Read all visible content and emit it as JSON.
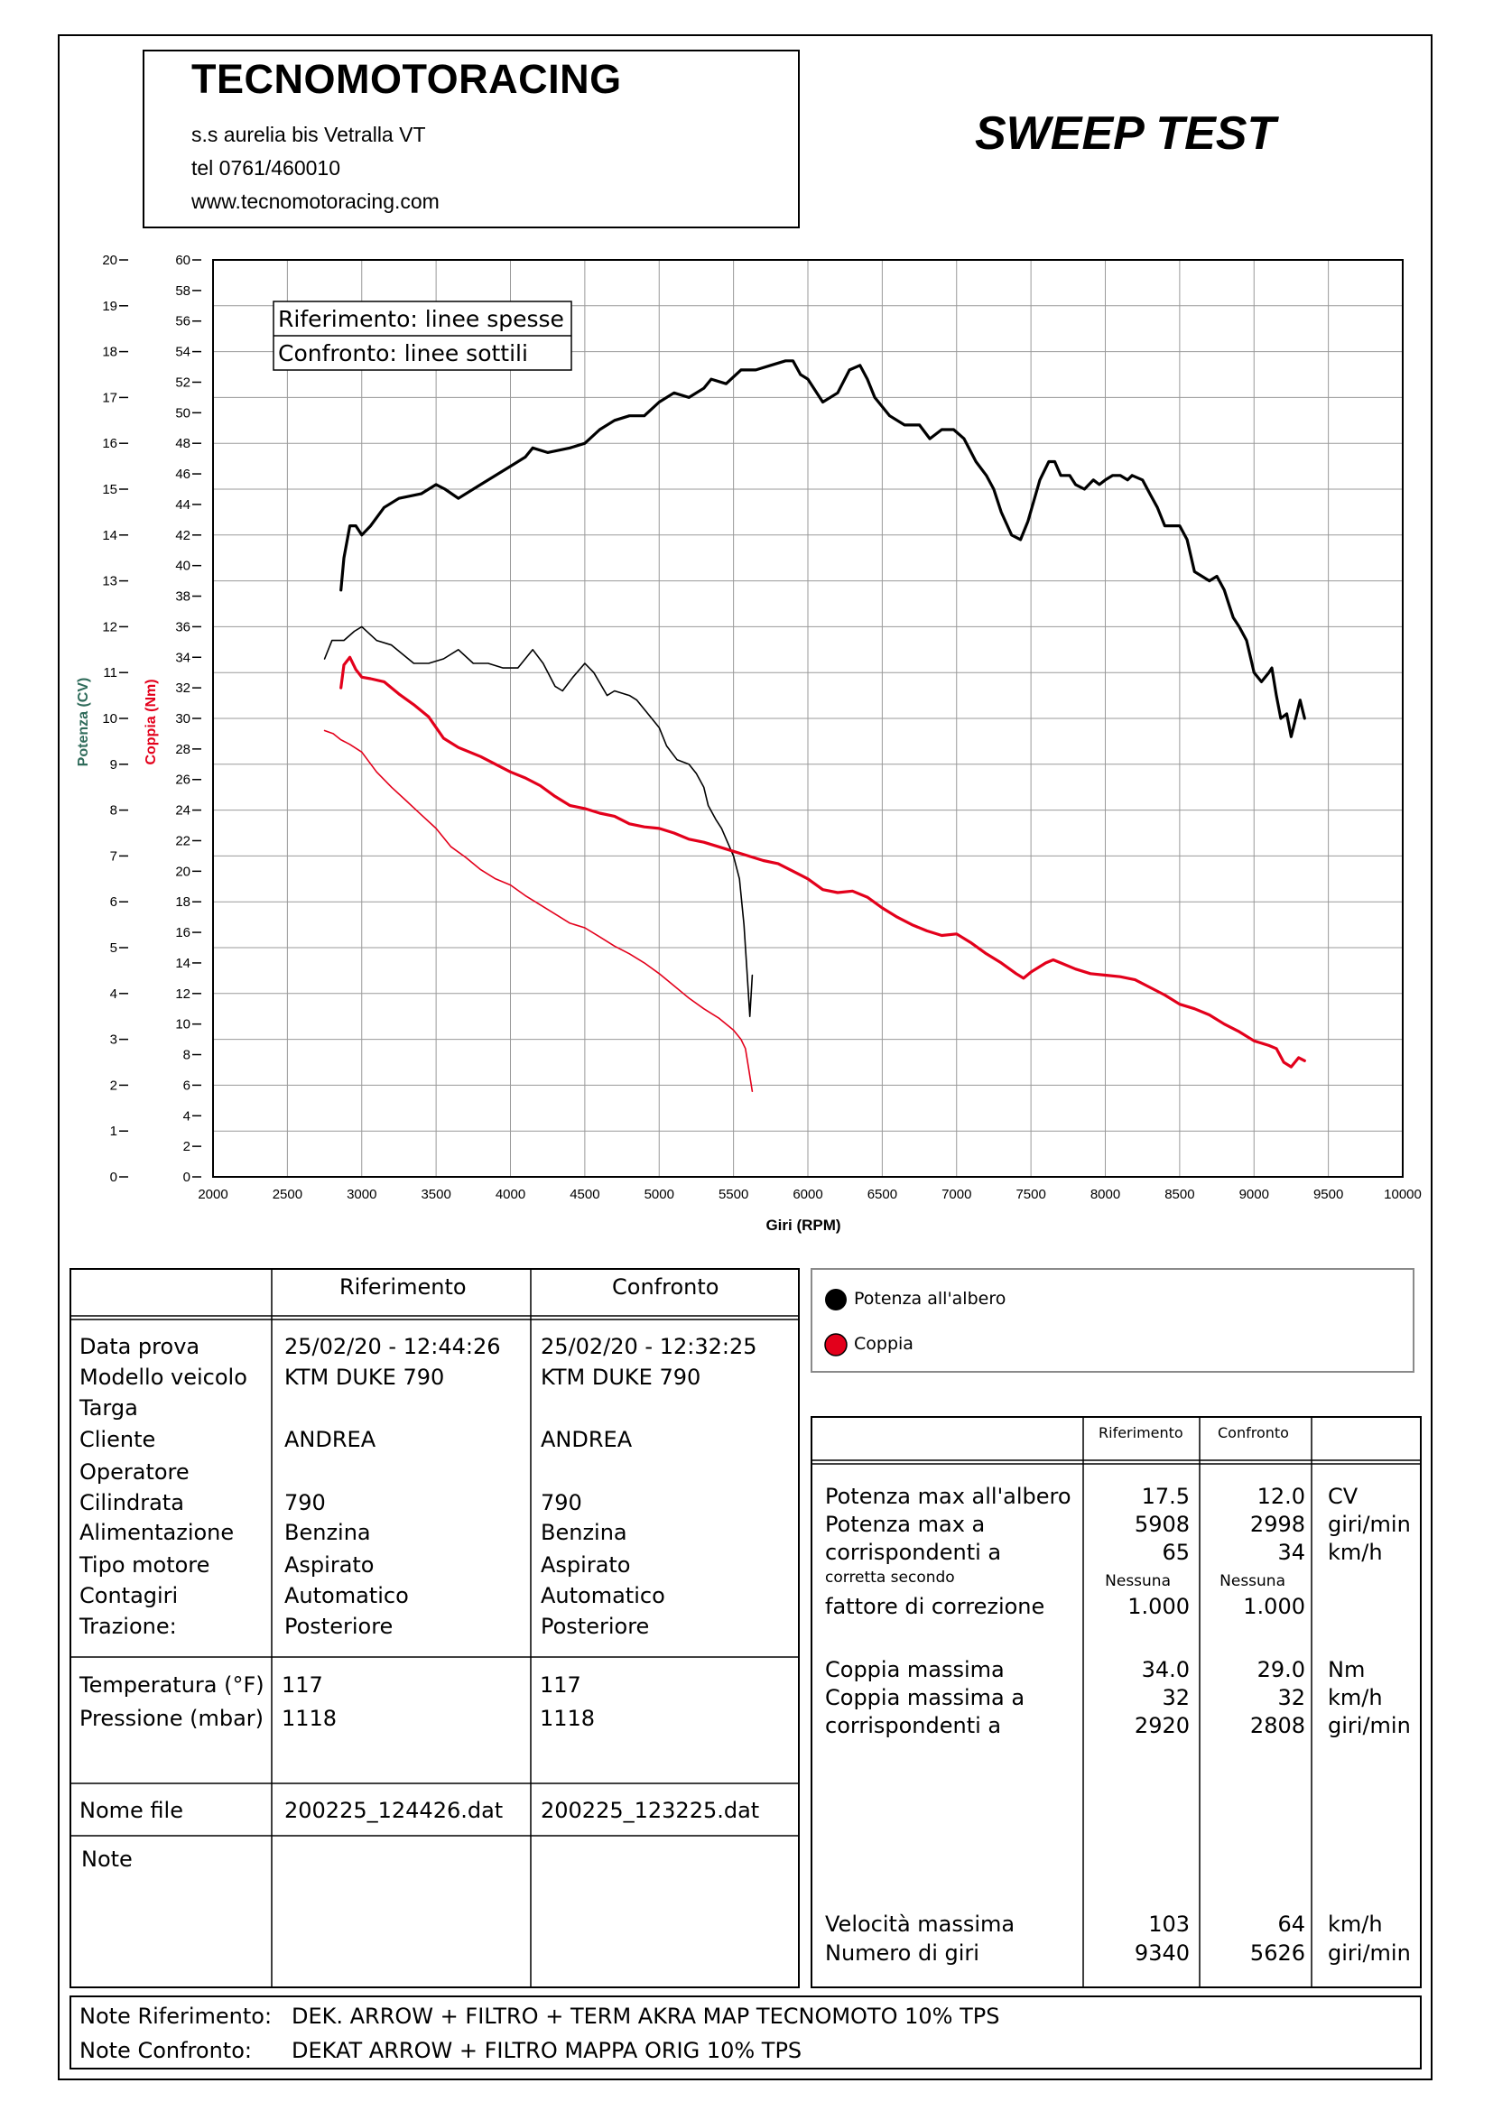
{
  "header": {
    "company": "TECNOMOTORACING",
    "address": "s.s aurelia bis  Vetralla  VT",
    "phone": "tel 0761/460010",
    "website": "www.tecnomotoracing.com",
    "test_title": "SWEEP TEST"
  },
  "legend_box": {
    "reference": "Riferimento: linee spesse",
    "comparison": "Confronto: linee sottili"
  },
  "series_legend": {
    "power": "Potenza all'albero",
    "torque": "Coppia",
    "power_color": "#000000",
    "torque_color": "#e3001b"
  },
  "chart_data": {
    "type": "line",
    "xlabel": "Giri (RPM)",
    "y1label": "Potenza (CV)",
    "y2label": "Coppia (Nm)",
    "xlim": [
      2000,
      10000
    ],
    "x_ticks": [
      2000,
      2500,
      3000,
      3500,
      4000,
      4500,
      5000,
      5500,
      6000,
      6500,
      7000,
      7500,
      8000,
      8500,
      9000,
      9500,
      10000
    ],
    "y1lim": [
      0,
      20
    ],
    "y1_ticks": [
      0,
      1,
      2,
      3,
      4,
      5,
      6,
      7,
      8,
      9,
      10,
      11,
      12,
      13,
      14,
      15,
      16,
      17,
      18,
      19,
      20
    ],
    "y2lim": [
      0,
      60
    ],
    "y2_ticks": [
      0,
      2,
      4,
      6,
      8,
      10,
      12,
      14,
      16,
      18,
      20,
      22,
      24,
      26,
      28,
      30,
      32,
      34,
      36,
      38,
      40,
      42,
      44,
      46,
      48,
      50,
      52,
      54,
      56,
      58,
      60
    ],
    "grid": true,
    "series": [
      {
        "name": "Potenza all'albero",
        "axis": "left",
        "color": "#000000",
        "weight": "thick",
        "x": [
          2860,
          2880,
          2920,
          2960,
          3000,
          3060,
          3150,
          3250,
          3400,
          3500,
          3560,
          3650,
          3800,
          3900,
          4000,
          4100,
          4150,
          4250,
          4400,
          4500,
          4600,
          4700,
          4800,
          4900,
          5000,
          5100,
          5200,
          5300,
          5350,
          5450,
          5550,
          5650,
          5750,
          5850,
          5900,
          5950,
          6000,
          6100,
          6200,
          6280,
          6350,
          6400,
          6450,
          6550,
          6650,
          6750,
          6820,
          6900,
          6980,
          7050,
          7130,
          7200,
          7250,
          7300,
          7370,
          7430,
          7480,
          7560,
          7620,
          7660,
          7700,
          7760,
          7800,
          7860,
          7920,
          7960,
          8000,
          8050,
          8100,
          8150,
          8180,
          8250,
          8300,
          8350,
          8400,
          8450,
          8500,
          8550,
          8600,
          8650,
          8700,
          8750,
          8800,
          8830,
          8860,
          8900,
          8950,
          9000,
          9050,
          9100,
          9120,
          9150,
          9180,
          9220,
          9250,
          9280,
          9310,
          9340
        ],
        "y": [
          12.8,
          13.5,
          14.2,
          14.2,
          14.0,
          14.2,
          14.6,
          14.8,
          14.9,
          15.1,
          15.0,
          14.8,
          15.1,
          15.3,
          15.5,
          15.7,
          15.9,
          15.8,
          15.9,
          16.0,
          16.3,
          16.5,
          16.6,
          16.6,
          16.9,
          17.1,
          17.0,
          17.2,
          17.4,
          17.3,
          17.6,
          17.6,
          17.7,
          17.8,
          17.8,
          17.5,
          17.4,
          16.9,
          17.1,
          17.6,
          17.7,
          17.4,
          17.0,
          16.6,
          16.4,
          16.4,
          16.1,
          16.3,
          16.3,
          16.1,
          15.6,
          15.3,
          15.0,
          14.5,
          14.0,
          13.9,
          14.3,
          15.2,
          15.6,
          15.6,
          15.3,
          15.3,
          15.1,
          15.0,
          15.2,
          15.1,
          15.2,
          15.3,
          15.3,
          15.2,
          15.3,
          15.2,
          14.9,
          14.6,
          14.2,
          14.2,
          14.2,
          13.9,
          13.2,
          13.1,
          13.0,
          13.1,
          12.8,
          12.5,
          12.2,
          12.0,
          11.7,
          11.0,
          10.8,
          11.0,
          11.1,
          10.5,
          10.0,
          10.1,
          9.6,
          10.0,
          10.4,
          10.0
        ]
      },
      {
        "name": "Potenza all'albero",
        "axis": "left",
        "color": "#000000",
        "weight": "thin",
        "x": [
          2750,
          2800,
          2880,
          2950,
          3000,
          3100,
          3200,
          3350,
          3450,
          3550,
          3650,
          3750,
          3850,
          3950,
          4050,
          4150,
          4220,
          4300,
          4350,
          4420,
          4500,
          4560,
          4650,
          4700,
          4800,
          4850,
          4950,
          5000,
          5050,
          5120,
          5200,
          5250,
          5300,
          5330,
          5380,
          5420,
          5460,
          5500,
          5540,
          5570,
          5590,
          5610,
          5626
        ],
        "y": [
          11.3,
          11.7,
          11.7,
          11.9,
          12.0,
          11.7,
          11.6,
          11.2,
          11.2,
          11.3,
          11.5,
          11.2,
          11.2,
          11.1,
          11.1,
          11.5,
          11.2,
          10.7,
          10.6,
          10.9,
          11.2,
          11.0,
          10.5,
          10.6,
          10.5,
          10.4,
          10.0,
          9.8,
          9.4,
          9.1,
          9.0,
          8.8,
          8.5,
          8.1,
          7.8,
          7.6,
          7.3,
          7.0,
          6.5,
          5.5,
          4.5,
          3.5,
          4.4
        ]
      },
      {
        "name": "Coppia",
        "axis": "right",
        "color": "#e3001b",
        "weight": "thick",
        "x": [
          2860,
          2880,
          2920,
          2960,
          3000,
          3060,
          3150,
          3250,
          3350,
          3450,
          3550,
          3650,
          3800,
          3900,
          4000,
          4100,
          4200,
          4300,
          4400,
          4500,
          4600,
          4700,
          4800,
          4900,
          5000,
          5100,
          5200,
          5300,
          5400,
          5500,
          5600,
          5700,
          5800,
          5900,
          6000,
          6100,
          6200,
          6300,
          6400,
          6500,
          6600,
          6700,
          6800,
          6900,
          7000,
          7100,
          7200,
          7300,
          7400,
          7450,
          7500,
          7600,
          7650,
          7700,
          7800,
          7900,
          8000,
          8100,
          8200,
          8300,
          8400,
          8500,
          8600,
          8700,
          8800,
          8900,
          9000,
          9100,
          9150,
          9200,
          9250,
          9300,
          9340
        ],
        "y": [
          32.0,
          33.5,
          34.0,
          33.2,
          32.7,
          32.6,
          32.4,
          31.6,
          30.9,
          30.1,
          28.7,
          28.1,
          27.5,
          27.0,
          26.5,
          26.1,
          25.6,
          24.9,
          24.3,
          24.1,
          23.8,
          23.6,
          23.1,
          22.9,
          22.8,
          22.5,
          22.1,
          21.9,
          21.6,
          21.3,
          21.0,
          20.7,
          20.5,
          20.0,
          19.5,
          18.8,
          18.6,
          18.7,
          18.3,
          17.6,
          17.0,
          16.5,
          16.1,
          15.8,
          15.9,
          15.3,
          14.6,
          14.0,
          13.3,
          13.0,
          13.4,
          14.0,
          14.2,
          14.0,
          13.6,
          13.3,
          13.2,
          13.1,
          12.9,
          12.4,
          11.9,
          11.3,
          11.0,
          10.6,
          10.0,
          9.5,
          8.9,
          8.6,
          8.4,
          7.5,
          7.2,
          7.8,
          7.6
        ]
      },
      {
        "name": "Coppia",
        "axis": "right",
        "color": "#e3001b",
        "weight": "thin",
        "x": [
          2750,
          2808,
          2860,
          2920,
          3000,
          3100,
          3200,
          3300,
          3400,
          3500,
          3600,
          3700,
          3800,
          3900,
          4000,
          4100,
          4200,
          4300,
          4400,
          4500,
          4600,
          4700,
          4800,
          4900,
          5000,
          5100,
          5200,
          5300,
          5400,
          5500,
          5550,
          5580,
          5600,
          5626
        ],
        "y": [
          29.2,
          29.0,
          28.6,
          28.3,
          27.8,
          26.5,
          25.5,
          24.6,
          23.7,
          22.8,
          21.6,
          20.9,
          20.1,
          19.5,
          19.1,
          18.4,
          17.8,
          17.2,
          16.6,
          16.3,
          15.7,
          15.1,
          14.6,
          14.0,
          13.3,
          12.5,
          11.7,
          11.0,
          10.4,
          9.6,
          9.0,
          8.4,
          7.2,
          5.6
        ]
      }
    ]
  },
  "info_table": {
    "col_ref": "Riferimento",
    "col_cmp": "Confronto",
    "labels": [
      "Data prova",
      "Modello veicolo",
      "Targa",
      "Cliente",
      "Operatore",
      "Cilindrata",
      "Alimentazione",
      "Tipo motore",
      "Contagiri",
      "Trazione:"
    ],
    "ref_values": [
      "25/02/20 - 12:44:26",
      "KTM DUKE 790",
      "",
      "ANDREA",
      "",
      "790",
      "Benzina",
      "Aspirato",
      "Automatico",
      "Posteriore"
    ],
    "cmp_values": [
      "25/02/20 - 12:32:25",
      "KTM DUKE 790",
      "",
      "ANDREA",
      "",
      "790",
      "Benzina",
      "Aspirato",
      "Automatico",
      "Posteriore"
    ],
    "temp_label": "Temperatura (°F)",
    "press_label": "Pressione (mbar)",
    "temp_ref": "117",
    "temp_cmp": "117",
    "press_ref": "1118",
    "press_cmp": "1118",
    "file_label": "Nome file",
    "file_ref": "200225_124426.dat",
    "file_cmp": "200225_123225.dat",
    "note_label": "Note"
  },
  "results_table": {
    "col_ref": "Riferimento",
    "col_cmp": "Confronto",
    "power_max_label": "Potenza max all'albero",
    "power_max_ref": "17.5",
    "power_max_cmp": "12.0",
    "power_max_unit": "CV",
    "power_rpm_label": "Potenza max a",
    "power_rpm_ref": "5908",
    "power_rpm_cmp": "2998",
    "power_rpm_unit": "giri/min",
    "power_speed_label": "corrispondenti a",
    "power_speed_ref": "65",
    "power_speed_cmp": "34",
    "power_speed_unit": "km/h",
    "correction_label": "corretta secondo",
    "correction_ref": "Nessuna",
    "correction_cmp": "Nessuna",
    "factor_label": "fattore di correzione",
    "factor_ref": "1.000",
    "factor_cmp": "1.000",
    "torque_max_label": "Coppia massima",
    "torque_max_ref": "34.0",
    "torque_max_cmp": "29.0",
    "torque_max_unit": "Nm",
    "torque_speed_label": "Coppia massima a",
    "torque_speed_ref": "32",
    "torque_speed_cmp": "32",
    "torque_speed_unit": "km/h",
    "torque_rpm_label": "corrispondenti a",
    "torque_rpm_ref": "2920",
    "torque_rpm_cmp": "2808",
    "torque_rpm_unit": "giri/min",
    "vmax_label": "Velocità massima",
    "vmax_ref": "103",
    "vmax_cmp": "64",
    "vmax_unit": "km/h",
    "rpm_label": "Numero di giri",
    "rpm_ref": "9340",
    "rpm_cmp": "5626",
    "rpm_unit": "giri/min"
  },
  "notes": {
    "ref_label": "Note Riferimento:",
    "ref_text": "DEK. ARROW + FILTRO  + TERM AKRA MAP TECNOMOTO 10% TPS",
    "cmp_label": "Note Confronto:",
    "cmp_text": "DEKAT ARROW + FILTRO  MAPPA ORIG 10% TPS"
  }
}
